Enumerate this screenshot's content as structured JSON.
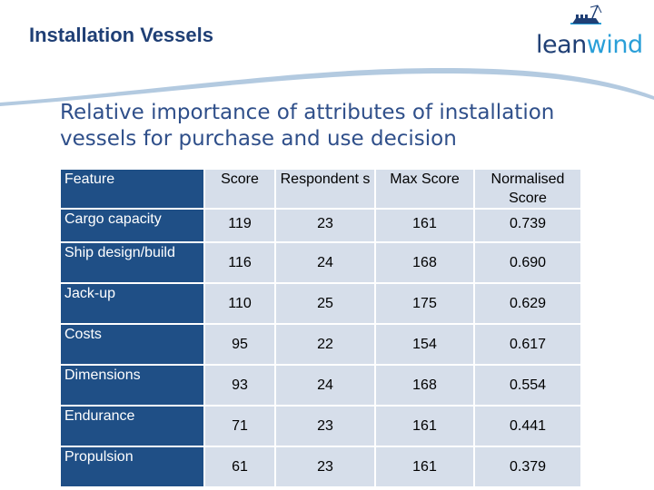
{
  "slide": {
    "title": "Installation Vessels",
    "subtitle": "Relative importance of attributes of installation vessels for purchase and use decision"
  },
  "logo": {
    "text_main": "lean",
    "text_accent": "wind",
    "colors": {
      "dark": "#1f3f75",
      "accent": "#2a9fd8"
    },
    "icon": "ship-icon"
  },
  "table": {
    "headers": [
      "Feature",
      "Score",
      "Respondent s",
      "Max Score",
      "Normalised Score"
    ],
    "rows": [
      [
        "Cargo capacity",
        "119",
        "23",
        "161",
        "0.739"
      ],
      [
        "Ship design/build",
        "116",
        "24",
        "168",
        "0.690"
      ],
      [
        "Jack-up",
        "110",
        "25",
        "175",
        "0.629"
      ],
      [
        "Costs",
        "95",
        "22",
        "154",
        "0.617"
      ],
      [
        "Dimensions",
        "93",
        "24",
        "168",
        "0.554"
      ],
      [
        "Endurance",
        "71",
        "23",
        "161",
        "0.441"
      ],
      [
        "Propulsion",
        "61",
        "23",
        "161",
        "0.379"
      ]
    ],
    "colors": {
      "feature_bg": "#1f4f86",
      "cell_bg": "#d6deea"
    }
  }
}
